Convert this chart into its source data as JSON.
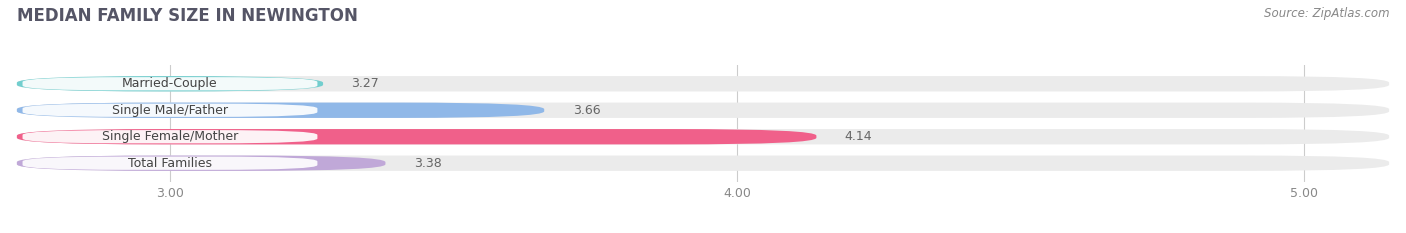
{
  "title": "MEDIAN FAMILY SIZE IN NEWINGTON",
  "source": "Source: ZipAtlas.com",
  "categories": [
    "Married-Couple",
    "Single Male/Father",
    "Single Female/Mother",
    "Total Families"
  ],
  "values": [
    3.27,
    3.66,
    4.14,
    3.38
  ],
  "bar_colors": [
    "#72cece",
    "#90b8e8",
    "#f0608a",
    "#c0a8d8"
  ],
  "bar_bg_color": "#ebebeb",
  "xlim": [
    2.73,
    5.15
  ],
  "xmin": 2.73,
  "xticks": [
    3.0,
    4.0,
    5.0
  ],
  "xtick_labels": [
    "3.00",
    "4.00",
    "5.00"
  ],
  "background_color": "#ffffff",
  "bar_height": 0.58,
  "title_fontsize": 12,
  "label_fontsize": 9,
  "value_fontsize": 9,
  "source_fontsize": 8.5
}
